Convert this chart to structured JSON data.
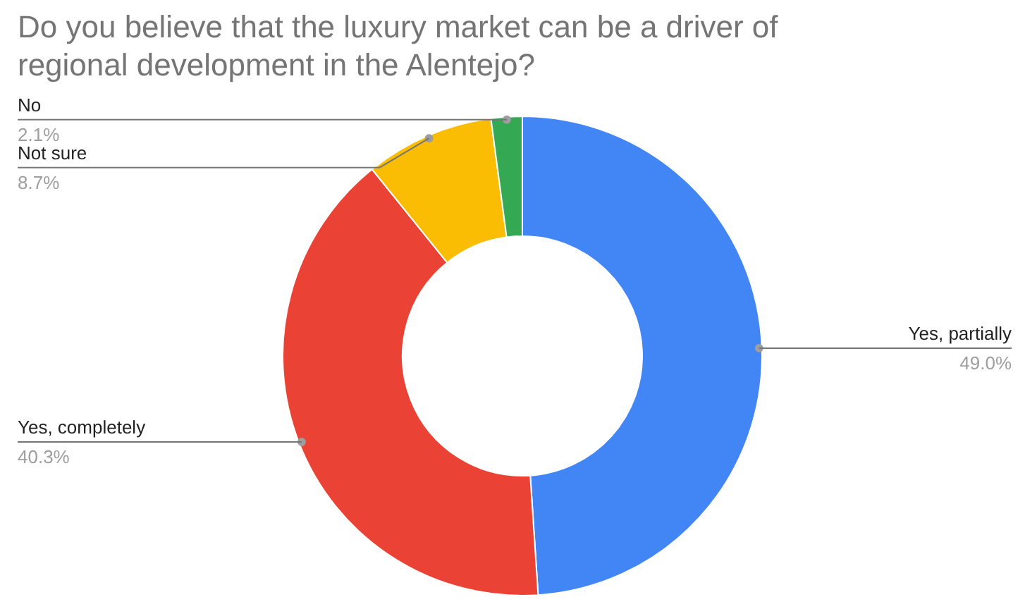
{
  "chart_data": {
    "type": "donut",
    "title": "Do you believe that the luxury market can be a driver of regional development in the Alentejo?",
    "categories": [
      "Yes, partially",
      "Yes, completely",
      "Not sure",
      "No"
    ],
    "values": [
      49.0,
      40.3,
      8.7,
      2.1
    ],
    "value_labels": [
      "49.0%",
      "40.3%",
      "8.7%",
      "2.1%"
    ],
    "colors": [
      "#4285f4",
      "#ea4335",
      "#fbbc04",
      "#34a853"
    ]
  }
}
